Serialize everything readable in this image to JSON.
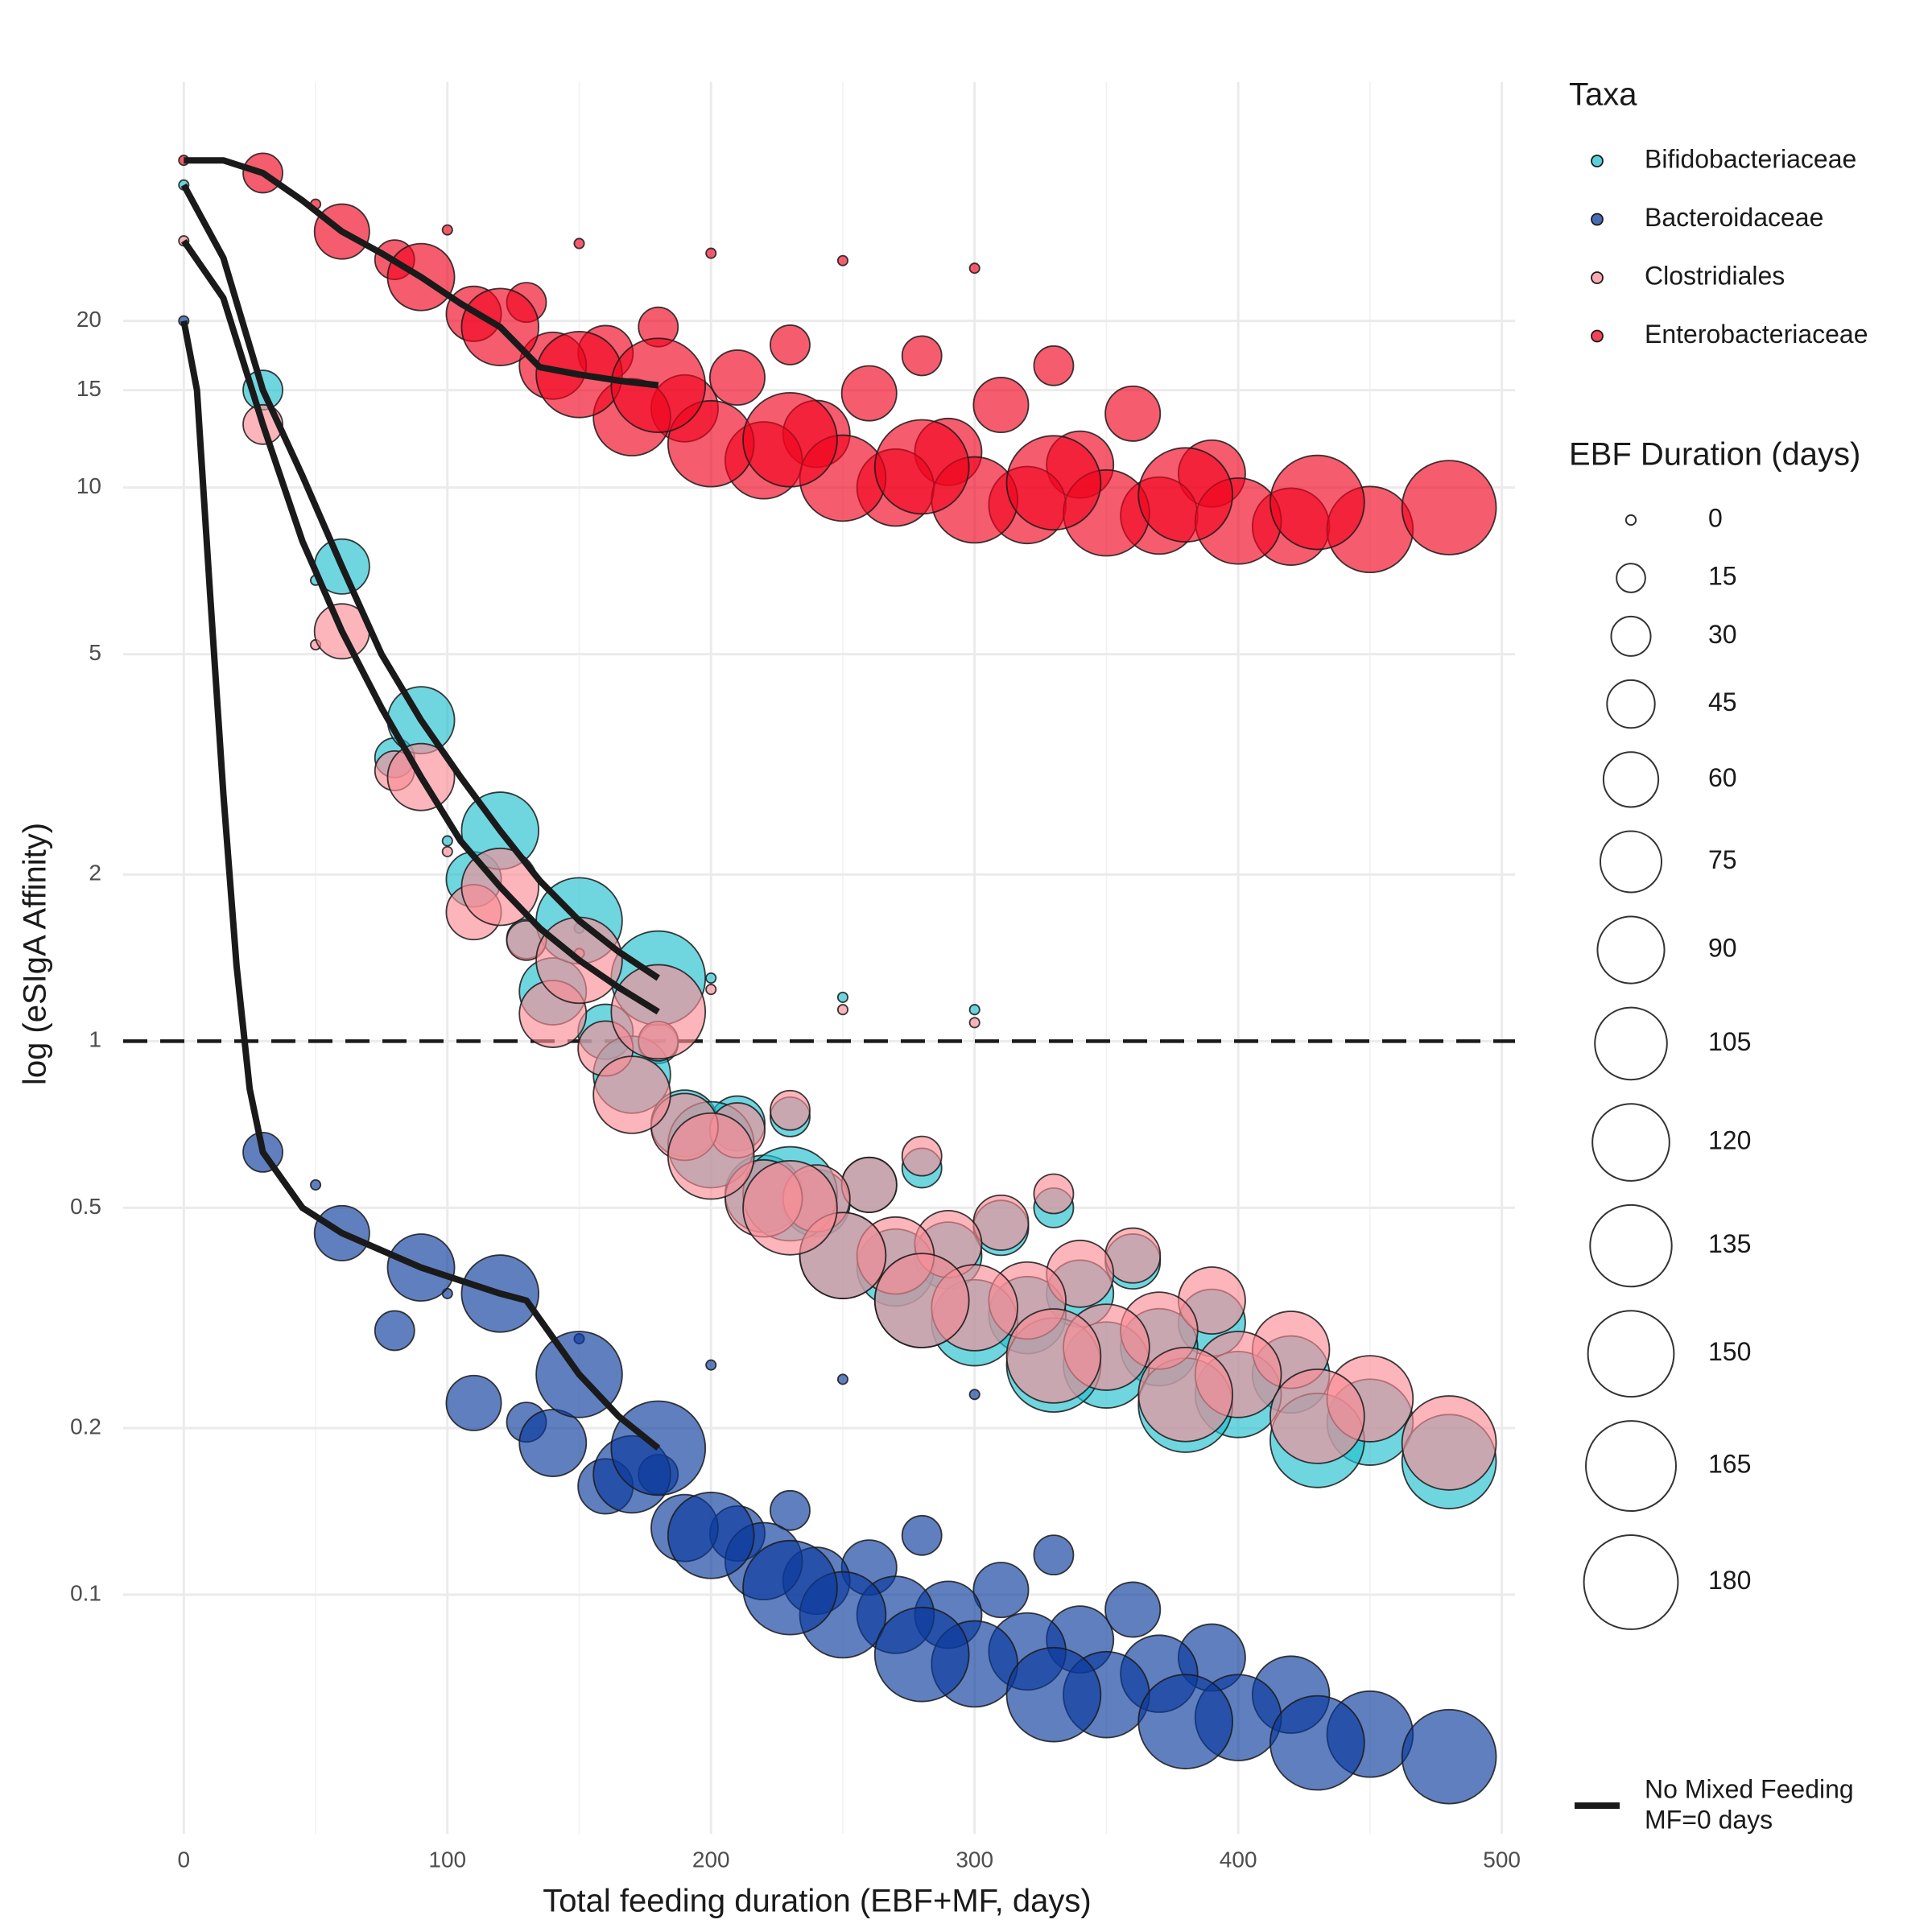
{
  "chart_data": {
    "type": "bubble",
    "x_label": "Total feeding duration (EBF+MF, days)",
    "y_label": "log (eSIgA Affinity)",
    "xlim": [
      -23,
      505
    ],
    "ylim": [
      0.037,
      54
    ],
    "log_y": true,
    "xticks": [
      0,
      100,
      200,
      300,
      400,
      500
    ],
    "xminorticks": [
      50,
      150,
      250,
      350,
      450
    ],
    "yticks": [
      0.1,
      0.2,
      0.5,
      1,
      2,
      5,
      10,
      15,
      20
    ],
    "grid": true,
    "hline": 1,
    "legend_title": "Taxa",
    "size_legend_title": "EBF Duration (days)",
    "size_legend_values": [
      0,
      15,
      30,
      45,
      60,
      75,
      90,
      105,
      120,
      135,
      150,
      165,
      180
    ],
    "line_label": [
      "No Mixed Feeding",
      "MF=0 days"
    ],
    "line_color": "#1a1a1a",
    "series": [
      {
        "name": "Bifidobacteriaceae",
        "color": "#22c0d0",
        "x": [
          0,
          50,
          100,
          150,
          200,
          250,
          300,
          30,
          80,
          130,
          180,
          230,
          280,
          330,
          60,
          110,
          160,
          210,
          260,
          310,
          360,
          90,
          140,
          190,
          240,
          290,
          340,
          390,
          120,
          170,
          220,
          270,
          320,
          370,
          420,
          150,
          200,
          250,
          300,
          350,
          400,
          450,
          180,
          230,
          280,
          330,
          380,
          430,
          480
        ],
        "values": [
          35.2,
          6.8,
          2.3,
          1.6,
          1.3,
          1.2,
          1.14,
          15,
          3.25,
          1.53,
          0.99,
          0.73,
          0.59,
          0.5,
          7.2,
          1.96,
          1.04,
          0.71,
          0.55,
          0.46,
          0.4,
          3.8,
          1.23,
          0.71,
          0.51,
          0.41,
          0.35,
          0.31,
          2.4,
          0.87,
          0.53,
          0.39,
          0.32,
          0.28,
          0.25,
          1.65,
          0.65,
          0.41,
          0.31,
          0.26,
          0.23,
          0.205,
          1.3,
          0.53,
          0.34,
          0.26,
          0.22,
          0.19,
          0.174
        ],
        "sizes": [
          0,
          0,
          0,
          0,
          0,
          0,
          0,
          30,
          30,
          30,
          30,
          30,
          30,
          30,
          60,
          60,
          60,
          60,
          60,
          60,
          60,
          90,
          90,
          90,
          90,
          90,
          90,
          90,
          120,
          120,
          120,
          120,
          120,
          120,
          120,
          150,
          150,
          150,
          150,
          150,
          150,
          150,
          180,
          180,
          180,
          180,
          180,
          180,
          180
        ],
        "line_x": [
          0,
          15,
          30,
          45,
          60,
          75,
          90,
          105,
          120,
          135,
          150,
          165,
          180
        ],
        "line_values": [
          35.2,
          26,
          15,
          10.5,
          7.2,
          5,
          3.8,
          3.0,
          2.4,
          1.95,
          1.65,
          1.45,
          1.3
        ]
      },
      {
        "name": "Bacteroidaceae",
        "color": "#0a3a9c",
        "x": [
          0,
          50,
          100,
          150,
          200,
          250,
          300,
          30,
          80,
          130,
          180,
          230,
          280,
          330,
          60,
          110,
          160,
          210,
          260,
          310,
          360,
          90,
          140,
          190,
          240,
          290,
          340,
          390,
          120,
          170,
          220,
          270,
          320,
          370,
          420,
          150,
          200,
          250,
          300,
          350,
          400,
          450,
          180,
          230,
          280,
          330,
          380,
          430,
          480
        ],
        "values": [
          20,
          0.55,
          0.35,
          0.29,
          0.26,
          0.245,
          0.23,
          0.63,
          0.3,
          0.205,
          0.165,
          0.142,
          0.128,
          0.118,
          0.45,
          0.222,
          0.157,
          0.129,
          0.112,
          0.102,
          0.094,
          0.39,
          0.188,
          0.132,
          0.106,
          0.092,
          0.083,
          0.077,
          0.35,
          0.165,
          0.115,
          0.092,
          0.079,
          0.072,
          0.066,
          0.25,
          0.128,
          0.092,
          0.075,
          0.066,
          0.06,
          0.056,
          0.184,
          0.103,
          0.078,
          0.066,
          0.059,
          0.054,
          0.051
        ],
        "sizes": [
          0,
          0,
          0,
          0,
          0,
          0,
          0,
          30,
          30,
          30,
          30,
          30,
          30,
          30,
          60,
          60,
          60,
          60,
          60,
          60,
          60,
          90,
          90,
          90,
          90,
          90,
          90,
          90,
          120,
          120,
          120,
          120,
          120,
          120,
          120,
          150,
          150,
          150,
          150,
          150,
          150,
          150,
          180,
          180,
          180,
          180,
          180,
          180,
          180
        ],
        "line_x": [
          0,
          5,
          10,
          15,
          20,
          25,
          30,
          45,
          60,
          90,
          120,
          130,
          150,
          165,
          180
        ],
        "line_values": [
          20,
          15,
          6.4,
          2.8,
          1.37,
          0.82,
          0.63,
          0.5,
          0.45,
          0.39,
          0.35,
          0.34,
          0.25,
          0.21,
          0.184
        ]
      },
      {
        "name": "Clostridiales",
        "color": "#f98d97",
        "x": [
          0,
          50,
          100,
          150,
          200,
          250,
          300,
          30,
          80,
          130,
          180,
          230,
          280,
          330,
          60,
          110,
          160,
          210,
          260,
          310,
          360,
          90,
          140,
          190,
          240,
          290,
          340,
          390,
          120,
          170,
          220,
          270,
          320,
          370,
          420,
          150,
          200,
          250,
          300,
          350,
          400,
          450,
          180,
          230,
          280,
          330,
          380,
          430,
          480
        ],
        "values": [
          27.9,
          5.2,
          2.2,
          1.44,
          1.24,
          1.14,
          1.08,
          13,
          3.08,
          1.52,
          1.0,
          0.75,
          0.62,
          0.53,
          5.5,
          1.71,
          0.97,
          0.69,
          0.55,
          0.47,
          0.41,
          3.0,
          1.12,
          0.7,
          0.52,
          0.43,
          0.38,
          0.34,
          1.9,
          0.8,
          0.52,
          0.41,
          0.34,
          0.3,
          0.277,
          1.4,
          0.62,
          0.41,
          0.33,
          0.28,
          0.25,
          0.226,
          1.13,
          0.5,
          0.34,
          0.27,
          0.23,
          0.21,
          0.188
        ],
        "sizes": [
          0,
          0,
          0,
          0,
          0,
          0,
          0,
          30,
          30,
          30,
          30,
          30,
          30,
          30,
          60,
          60,
          60,
          60,
          60,
          60,
          60,
          90,
          90,
          90,
          90,
          90,
          90,
          90,
          120,
          120,
          120,
          120,
          120,
          120,
          120,
          150,
          150,
          150,
          150,
          150,
          150,
          150,
          180,
          180,
          180,
          180,
          180,
          180,
          180
        ],
        "line_x": [
          0,
          15,
          30,
          45,
          60,
          75,
          90,
          105,
          120,
          135,
          150,
          165,
          180
        ],
        "line_values": [
          27.9,
          22,
          13,
          8,
          5.5,
          4,
          3.0,
          2.3,
          1.9,
          1.6,
          1.4,
          1.25,
          1.13
        ]
      },
      {
        "name": "Enterobacteriaceae",
        "color": "#f0041f",
        "x": [
          0,
          50,
          100,
          150,
          200,
          250,
          300,
          30,
          80,
          130,
          180,
          230,
          280,
          330,
          60,
          110,
          160,
          210,
          260,
          310,
          360,
          90,
          140,
          190,
          240,
          290,
          340,
          390,
          120,
          170,
          220,
          270,
          320,
          370,
          420,
          150,
          200,
          250,
          300,
          350,
          400,
          450,
          180,
          230,
          280,
          330,
          380,
          430,
          480
        ],
        "values": [
          39,
          32.5,
          29.2,
          27.6,
          26.5,
          25.7,
          24.9,
          37,
          25.8,
          21.6,
          19.5,
          18.1,
          17.3,
          16.6,
          29,
          20.6,
          17.5,
          15.8,
          14.8,
          14.1,
          13.6,
          24,
          16.6,
          13.9,
          12.5,
          11.6,
          11.0,
          10.6,
          19.5,
          13.4,
          11.2,
          10.0,
          9.3,
          8.9,
          8.5,
          16,
          12.0,
          10.4,
          9.5,
          9.0,
          8.7,
          8.4,
          15.3,
          12.2,
          10.9,
          10.2,
          9.7,
          9.4,
          9.2
        ],
        "sizes": [
          0,
          0,
          0,
          0,
          0,
          0,
          0,
          30,
          30,
          30,
          30,
          30,
          30,
          30,
          60,
          60,
          60,
          60,
          60,
          60,
          60,
          90,
          90,
          90,
          90,
          90,
          90,
          90,
          120,
          120,
          120,
          120,
          120,
          120,
          120,
          150,
          150,
          150,
          150,
          150,
          150,
          150,
          180,
          180,
          180,
          180,
          180,
          180,
          180
        ],
        "line_x": [
          0,
          15,
          30,
          45,
          60,
          75,
          90,
          105,
          120,
          135,
          150,
          165,
          180
        ],
        "line_values": [
          39,
          39,
          37,
          33,
          29,
          26.5,
          24,
          21.5,
          19.5,
          16.5,
          16,
          15.6,
          15.3
        ]
      }
    ]
  }
}
